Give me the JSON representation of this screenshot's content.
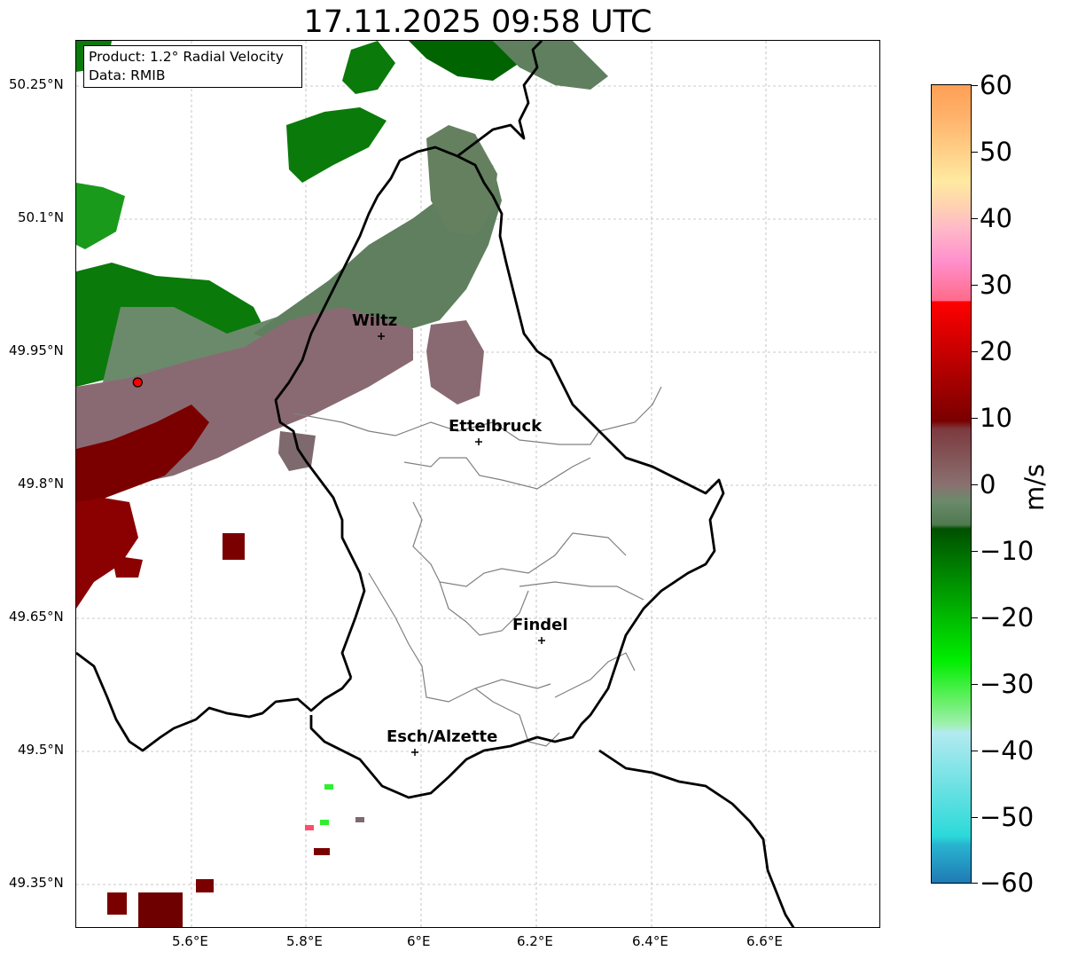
{
  "title": "17.11.2025 09:58 UTC",
  "info": {
    "product_line": "Product: 1.2° Radial Velocity",
    "data_line": "Data: RMIB"
  },
  "map": {
    "lon_range": [
      5.4,
      6.8
    ],
    "lat_range": [
      49.3,
      50.3
    ],
    "lat_ticks": [
      "50.25°N",
      "50.1°N",
      "49.95°N",
      "49.8°N",
      "49.65°N",
      "49.5°N",
      "49.35°N"
    ],
    "lon_ticks": [
      "5.6°E",
      "5.8°E",
      "6°E",
      "6.2°E",
      "6.4°E",
      "6.6°E"
    ],
    "radar_site": {
      "lon": 5.505,
      "lat": 49.914
    },
    "cities": [
      {
        "name": "Wiltz",
        "lon": 5.93,
        "lat": 49.965
      },
      {
        "name": "Ettelbruck",
        "lon": 6.1,
        "lat": 49.847
      },
      {
        "name": "Findel",
        "lon": 6.21,
        "lat": 49.625
      },
      {
        "name": "Esch/Alzette",
        "lon": 5.99,
        "lat": 49.499
      }
    ]
  },
  "colorbar": {
    "label": "m/s",
    "range": [
      -60,
      60
    ],
    "ticks": [
      "60",
      "50",
      "40",
      "30",
      "20",
      "10",
      "0",
      "−10",
      "−20",
      "−30",
      "−40",
      "−50",
      "−60"
    ],
    "colors": {
      "minus60": "#1f78b4",
      "minus50": "#2bd9d9",
      "minus40": "#b2eaf0",
      "minus35": "#90f0b0",
      "minus30": "#2ef02e",
      "minus20": "#00cc00",
      "minus10": "#006400",
      "zero": "#6b8f6b",
      "plus5": "#8a6a72",
      "plus10": "#6e0000",
      "plus20": "#cc0000",
      "plus30": "#ff4d6a",
      "plus40": "#ff99cc",
      "plus50": "#ffd27f",
      "plus60": "#ff9f55"
    }
  }
}
